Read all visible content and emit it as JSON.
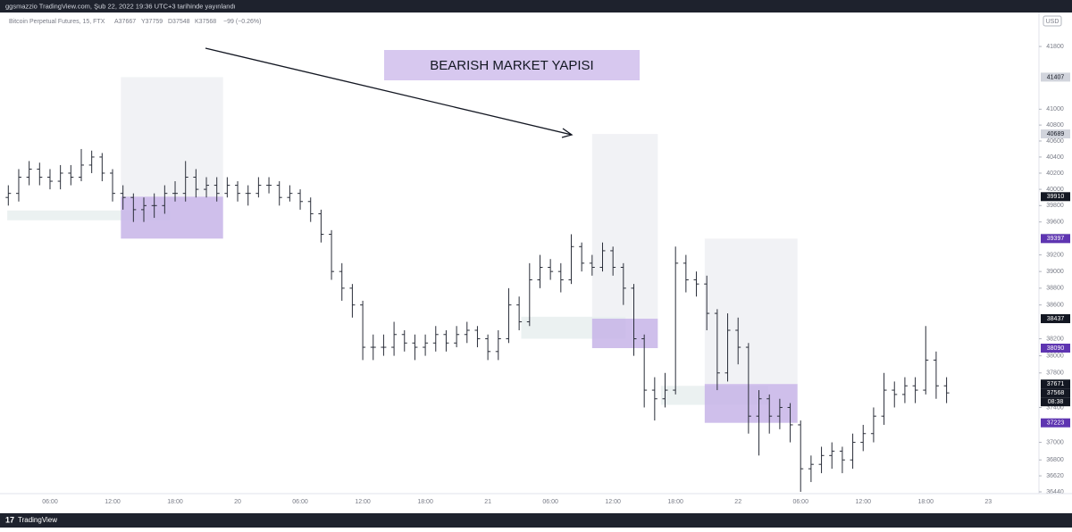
{
  "header": {
    "text": "ggsmazzio TradingView.com, Şub 22, 2022 19:36 UTC+3 tarihinde yayınlandı"
  },
  "chart_data": {
    "type": "ohlc",
    "title": "Bitcoin Perpetual Futures, 15, FTX",
    "legend_values": [
      "A37667",
      "Y37759",
      "D37548",
      "K37568",
      "−99 (−0.26%)"
    ],
    "annotation": "BEARISH MARKET YAPISI",
    "currency": "USD",
    "categories": [
      null,
      null,
      null,
      null,
      "06:00",
      null,
      null,
      null,
      null,
      null,
      "12:00",
      null,
      null,
      null,
      null,
      null,
      "18:00",
      null,
      null,
      null,
      null,
      null,
      "20",
      null,
      null,
      null,
      null,
      null,
      "06:00",
      null,
      null,
      null,
      null,
      null,
      "12:00",
      null,
      null,
      null,
      null,
      null,
      "18:00",
      null,
      null,
      null,
      null,
      null,
      "21",
      null,
      null,
      null,
      null,
      null,
      "06:00",
      null,
      null,
      null,
      null,
      null,
      "12:00",
      null,
      null,
      null,
      null,
      null,
      "18:00",
      null,
      null,
      null,
      null,
      null,
      "22",
      null,
      null,
      null,
      null,
      null,
      "06:00",
      null,
      null,
      null,
      null,
      null,
      "12:00",
      null,
      null,
      null,
      null,
      null,
      "18:00",
      null,
      null,
      null,
      null,
      null,
      "23"
    ],
    "open": [
      39900,
      39950,
      40150,
      40250,
      40150,
      40100,
      40200,
      40150,
      40300,
      40400,
      40200,
      39950,
      39900,
      39750,
      39800,
      39800,
      39950,
      39950,
      40150,
      40000,
      40050,
      39950,
      40050,
      39950,
      39950,
      40050,
      40050,
      39900,
      39950,
      39850,
      39700,
      39450,
      39000,
      38800,
      38600,
      38100,
      38100,
      38100,
      38250,
      38150,
      38100,
      38150,
      38250,
      38150,
      38250,
      38300,
      38200,
      38050,
      38200,
      38600,
      38400,
      38900,
      39050,
      39000,
      38900,
      39300,
      39100,
      39050,
      39250,
      39050,
      38800,
      38200,
      37600,
      37500,
      37600,
      39100,
      38900,
      38850,
      38500,
      37800,
      38300,
      38100,
      37300,
      37500,
      37300,
      37400,
      37200,
      36700,
      36750,
      36850,
      36900,
      36800,
      37000,
      37100,
      37300,
      37600,
      37550,
      37650,
      37600,
      37950,
      37650,
      null,
      null,
      null,
      null
    ],
    "high": [
      40050,
      40250,
      40350,
      40330,
      40250,
      40300,
      40300,
      40500,
      40480,
      40450,
      40250,
      40050,
      39950,
      39900,
      39950,
      40050,
      40100,
      40350,
      40250,
      40150,
      40150,
      40150,
      40100,
      40050,
      40150,
      40150,
      40100,
      40050,
      40000,
      39900,
      39750,
      39500,
      39100,
      38850,
      38650,
      38250,
      38250,
      38400,
      38300,
      38250,
      38250,
      38350,
      38300,
      38350,
      38400,
      38350,
      38250,
      38300,
      38800,
      38700,
      39100,
      39200,
      39150,
      39100,
      39450,
      39350,
      39200,
      39350,
      39300,
      39100,
      38850,
      38250,
      37750,
      37800,
      39300,
      39200,
      39000,
      38950,
      38550,
      38500,
      38450,
      38150,
      37600,
      37550,
      37500,
      37450,
      37250,
      36850,
      36950,
      37000,
      36950,
      37100,
      37200,
      37400,
      37800,
      37700,
      37750,
      37750,
      38350,
      38050,
      37750,
      null,
      null,
      null,
      null
    ],
    "low": [
      39800,
      39850,
      40050,
      40050,
      40000,
      40000,
      40050,
      40100,
      40200,
      40100,
      39850,
      39750,
      39600,
      39600,
      39650,
      39700,
      39850,
      39850,
      39900,
      39900,
      39850,
      39900,
      39850,
      39800,
      39900,
      39950,
      39800,
      39850,
      39750,
      39600,
      39350,
      38900,
      38650,
      38450,
      37950,
      37950,
      38000,
      38000,
      38050,
      37950,
      38000,
      38050,
      38050,
      38100,
      38150,
      38100,
      37950,
      37950,
      38150,
      38300,
      38350,
      38800,
      38900,
      38750,
      38850,
      39000,
      38950,
      39000,
      38950,
      38600,
      38000,
      37400,
      37250,
      37400,
      37550,
      38750,
      38700,
      38300,
      37600,
      37700,
      37900,
      37100,
      36850,
      37100,
      37150,
      37000,
      36440,
      36550,
      36650,
      36700,
      36650,
      36700,
      36900,
      37000,
      37200,
      37400,
      37450,
      37450,
      37550,
      37500,
      37450,
      null,
      null,
      null,
      null
    ],
    "close": [
      39950,
      40150,
      40250,
      40150,
      40100,
      40200,
      40150,
      40300,
      40400,
      40200,
      39950,
      39900,
      39750,
      39800,
      39800,
      39950,
      39950,
      40150,
      40000,
      40050,
      39950,
      40050,
      39950,
      39950,
      40050,
      40050,
      39900,
      39950,
      39850,
      39700,
      39450,
      39000,
      38800,
      38600,
      38100,
      38100,
      38100,
      38250,
      38150,
      38100,
      38150,
      38250,
      38150,
      38250,
      38300,
      38200,
      38050,
      38200,
      38600,
      38400,
      38900,
      39050,
      39000,
      38900,
      39300,
      39100,
      39050,
      39250,
      39050,
      38800,
      38200,
      37600,
      37500,
      37600,
      39100,
      38900,
      38850,
      38500,
      37800,
      38300,
      38100,
      37300,
      37500,
      37300,
      37400,
      37200,
      36700,
      36750,
      36850,
      36900,
      36800,
      37000,
      37100,
      37300,
      37600,
      37550,
      37650,
      37600,
      37950,
      37650,
      37568,
      null,
      null,
      null,
      null
    ],
    "color": "#2a2e39",
    "log_scale": true,
    "ylim": [
      36420,
      42240
    ],
    "yticks": [
      41800,
      41000,
      40800,
      40600,
      40400,
      40200,
      40000,
      39800,
      39600,
      39200,
      39000,
      38800,
      38600,
      38200,
      38000,
      37800,
      37400,
      37000,
      36800,
      36620,
      36440
    ],
    "price_labels": [
      {
        "value": 41407,
        "color": "#d1d4dc"
      },
      {
        "value": 40689,
        "color": "#d1d4dc"
      },
      {
        "value": 39910,
        "color": "#131722"
      },
      {
        "value": 39404,
        "color": "#d1d4dc"
      },
      {
        "value": 39397,
        "color": "#5e35b1"
      },
      {
        "value": 38437,
        "color": "#131722"
      },
      {
        "value": 38090,
        "color": "#5e35b1"
      },
      {
        "value": 37671,
        "color": "#131722"
      },
      {
        "value": 37568,
        "color": "#131722"
      },
      {
        "value": 37223,
        "color": "#5e35b1"
      }
    ],
    "countdown": "08:38",
    "zones": [
      {
        "start": 10.8,
        "end": 20.6,
        "top": 41407,
        "bottom": 39910,
        "color": "#eff0f3"
      },
      {
        "start": -0.1,
        "end": 15.5,
        "top": 39740,
        "bottom": 39620,
        "color": "#e8efee"
      },
      {
        "start": 10.8,
        "end": 20.6,
        "top": 39910,
        "bottom": 39397,
        "color": "#c7b4e8"
      },
      {
        "start": 56,
        "end": 62.3,
        "top": 40689,
        "bottom": 38437,
        "color": "#eff0f3"
      },
      {
        "start": 49.2,
        "end": 59.2,
        "top": 38460,
        "bottom": 38200,
        "color": "#e8efee"
      },
      {
        "start": 56,
        "end": 62.3,
        "top": 38437,
        "bottom": 38090,
        "color": "#c7b4e8"
      },
      {
        "start": 66.8,
        "end": 75.7,
        "top": 39397,
        "bottom": 37671,
        "color": "#eff0f3"
      },
      {
        "start": 62.6,
        "end": 72.9,
        "top": 37650,
        "bottom": 37430,
        "color": "#e8efee"
      },
      {
        "start": 66.8,
        "end": 75.7,
        "top": 37671,
        "bottom": 37223,
        "color": "#c7b4e8"
      }
    ]
  },
  "footer": {
    "brand": "TradingView"
  }
}
